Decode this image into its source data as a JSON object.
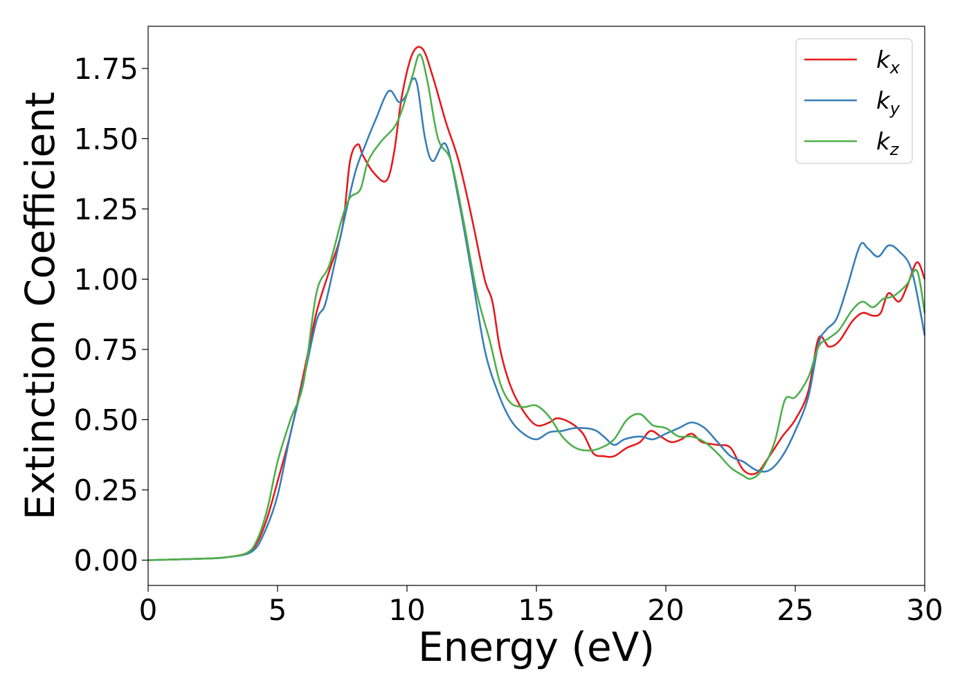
{
  "chart_data": {
    "type": "line",
    "xlabel": "Energy (eV)",
    "ylabel": "Extinction Coefficient",
    "xlim": [
      0,
      30
    ],
    "ylim": [
      -0.09,
      1.9
    ],
    "xticks": [
      0,
      5,
      10,
      15,
      20,
      25,
      30
    ],
    "xtick_labels": [
      "0",
      "5",
      "10",
      "15",
      "20",
      "25",
      "30"
    ],
    "yticks": [
      0.0,
      0.25,
      0.5,
      0.75,
      1.0,
      1.25,
      1.5,
      1.75
    ],
    "ytick_labels": [
      "0.00",
      "0.25",
      "0.50",
      "0.75",
      "1.00",
      "1.25",
      "1.50",
      "1.75"
    ],
    "grid": false,
    "legend_position": "top-right",
    "series": [
      {
        "name": "k_x",
        "label_main": "k",
        "label_sub": "x",
        "color": "#e41a1c",
        "points": [
          [
            0,
            0
          ],
          [
            2,
            0.005
          ],
          [
            3,
            0.01
          ],
          [
            3.8,
            0.025
          ],
          [
            4.2,
            0.06
          ],
          [
            4.6,
            0.15
          ],
          [
            5,
            0.28
          ],
          [
            5.5,
            0.45
          ],
          [
            6,
            0.66
          ],
          [
            6.5,
            0.88
          ],
          [
            7,
            1.03
          ],
          [
            7.5,
            1.18
          ],
          [
            7.8,
            1.42
          ],
          [
            8.1,
            1.48
          ],
          [
            8.3,
            1.44
          ],
          [
            8.7,
            1.38
          ],
          [
            9.2,
            1.35
          ],
          [
            9.5,
            1.45
          ],
          [
            9.8,
            1.65
          ],
          [
            10.2,
            1.8
          ],
          [
            10.6,
            1.82
          ],
          [
            11,
            1.72
          ],
          [
            11.5,
            1.56
          ],
          [
            12,
            1.42
          ],
          [
            12.5,
            1.22
          ],
          [
            13,
            1.0
          ],
          [
            13.3,
            0.92
          ],
          [
            13.6,
            0.75
          ],
          [
            14,
            0.62
          ],
          [
            14.5,
            0.53
          ],
          [
            15,
            0.48
          ],
          [
            15.5,
            0.49
          ],
          [
            15.8,
            0.505
          ],
          [
            16.3,
            0.49
          ],
          [
            16.8,
            0.45
          ],
          [
            17.2,
            0.38
          ],
          [
            17.6,
            0.37
          ],
          [
            18,
            0.37
          ],
          [
            18.5,
            0.4
          ],
          [
            19,
            0.42
          ],
          [
            19.4,
            0.46
          ],
          [
            19.8,
            0.44
          ],
          [
            20.2,
            0.42
          ],
          [
            20.6,
            0.43
          ],
          [
            21,
            0.45
          ],
          [
            21.4,
            0.42
          ],
          [
            22,
            0.41
          ],
          [
            22.5,
            0.4
          ],
          [
            23,
            0.32
          ],
          [
            23.5,
            0.31
          ],
          [
            24,
            0.37
          ],
          [
            24.5,
            0.44
          ],
          [
            25,
            0.5
          ],
          [
            25.5,
            0.6
          ],
          [
            25.9,
            0.79
          ],
          [
            26.3,
            0.76
          ],
          [
            26.7,
            0.78
          ],
          [
            27.2,
            0.85
          ],
          [
            27.6,
            0.88
          ],
          [
            28,
            0.87
          ],
          [
            28.3,
            0.88
          ],
          [
            28.6,
            0.95
          ],
          [
            29,
            0.92
          ],
          [
            29.3,
            0.97
          ],
          [
            29.7,
            1.06
          ],
          [
            30,
            1.0
          ]
        ]
      },
      {
        "name": "k_y",
        "label_main": "k",
        "label_sub": "y",
        "color": "#377eb8",
        "points": [
          [
            0,
            0
          ],
          [
            2,
            0.005
          ],
          [
            3,
            0.01
          ],
          [
            4,
            0.03
          ],
          [
            4.5,
            0.1
          ],
          [
            5,
            0.23
          ],
          [
            5.5,
            0.45
          ],
          [
            6,
            0.64
          ],
          [
            6.5,
            0.85
          ],
          [
            6.8,
            0.9
          ],
          [
            7,
            0.97
          ],
          [
            7.5,
            1.18
          ],
          [
            8,
            1.38
          ],
          [
            8.4,
            1.48
          ],
          [
            8.8,
            1.57
          ],
          [
            9.3,
            1.67
          ],
          [
            9.7,
            1.63
          ],
          [
            10,
            1.66
          ],
          [
            10.2,
            1.71
          ],
          [
            10.4,
            1.69
          ],
          [
            10.7,
            1.5
          ],
          [
            11,
            1.42
          ],
          [
            11.5,
            1.48
          ],
          [
            12,
            1.28
          ],
          [
            12.5,
            1.02
          ],
          [
            13,
            0.75
          ],
          [
            13.5,
            0.6
          ],
          [
            14,
            0.5
          ],
          [
            14.5,
            0.45
          ],
          [
            15,
            0.43
          ],
          [
            15.5,
            0.455
          ],
          [
            16,
            0.46
          ],
          [
            16.5,
            0.47
          ],
          [
            17.2,
            0.465
          ],
          [
            17.6,
            0.44
          ],
          [
            18,
            0.41
          ],
          [
            18.4,
            0.43
          ],
          [
            19,
            0.44
          ],
          [
            19.5,
            0.43
          ],
          [
            20,
            0.45
          ],
          [
            20.5,
            0.47
          ],
          [
            21,
            0.49
          ],
          [
            21.5,
            0.47
          ],
          [
            22,
            0.42
          ],
          [
            22.5,
            0.37
          ],
          [
            23,
            0.35
          ],
          [
            23.5,
            0.32
          ],
          [
            24,
            0.32
          ],
          [
            24.5,
            0.37
          ],
          [
            25,
            0.46
          ],
          [
            25.5,
            0.58
          ],
          [
            25.9,
            0.77
          ],
          [
            26.2,
            0.82
          ],
          [
            26.6,
            0.86
          ],
          [
            27,
            0.97
          ],
          [
            27.5,
            1.12
          ],
          [
            27.8,
            1.11
          ],
          [
            28.2,
            1.08
          ],
          [
            28.6,
            1.12
          ],
          [
            29,
            1.1
          ],
          [
            29.5,
            1.03
          ],
          [
            30,
            0.8
          ]
        ]
      },
      {
        "name": "k_z",
        "label_main": "k",
        "label_sub": "z",
        "color": "#4daf4a",
        "points": [
          [
            0,
            0
          ],
          [
            2,
            0.005
          ],
          [
            3,
            0.01
          ],
          [
            3.8,
            0.025
          ],
          [
            4.2,
            0.07
          ],
          [
            4.6,
            0.18
          ],
          [
            5,
            0.35
          ],
          [
            5.5,
            0.5
          ],
          [
            6,
            0.63
          ],
          [
            6.5,
            0.95
          ],
          [
            7,
            1.05
          ],
          [
            7.5,
            1.22
          ],
          [
            7.8,
            1.29
          ],
          [
            8.2,
            1.32
          ],
          [
            8.5,
            1.42
          ],
          [
            9,
            1.49
          ],
          [
            9.5,
            1.54
          ],
          [
            9.8,
            1.6
          ],
          [
            10.2,
            1.72
          ],
          [
            10.5,
            1.8
          ],
          [
            10.8,
            1.7
          ],
          [
            11.2,
            1.5
          ],
          [
            11.7,
            1.42
          ],
          [
            12.2,
            1.2
          ],
          [
            12.7,
            0.95
          ],
          [
            13.2,
            0.78
          ],
          [
            13.6,
            0.63
          ],
          [
            14,
            0.56
          ],
          [
            14.5,
            0.545
          ],
          [
            15,
            0.55
          ],
          [
            15.5,
            0.51
          ],
          [
            16,
            0.44
          ],
          [
            16.5,
            0.4
          ],
          [
            17,
            0.39
          ],
          [
            17.5,
            0.4
          ],
          [
            18,
            0.43
          ],
          [
            18.5,
            0.5
          ],
          [
            19,
            0.52
          ],
          [
            19.5,
            0.48
          ],
          [
            20,
            0.47
          ],
          [
            20.5,
            0.44
          ],
          [
            21,
            0.44
          ],
          [
            21.5,
            0.42
          ],
          [
            22,
            0.38
          ],
          [
            22.5,
            0.33
          ],
          [
            23,
            0.3
          ],
          [
            23.3,
            0.29
          ],
          [
            23.7,
            0.32
          ],
          [
            24.2,
            0.42
          ],
          [
            24.6,
            0.57
          ],
          [
            25,
            0.58
          ],
          [
            25.5,
            0.65
          ],
          [
            25.9,
            0.76
          ],
          [
            26.3,
            0.79
          ],
          [
            26.7,
            0.82
          ],
          [
            27.2,
            0.89
          ],
          [
            27.6,
            0.92
          ],
          [
            28,
            0.9
          ],
          [
            28.4,
            0.93
          ],
          [
            28.8,
            0.94
          ],
          [
            29.3,
            0.98
          ],
          [
            29.7,
            1.03
          ],
          [
            30,
            0.88
          ]
        ]
      }
    ]
  }
}
